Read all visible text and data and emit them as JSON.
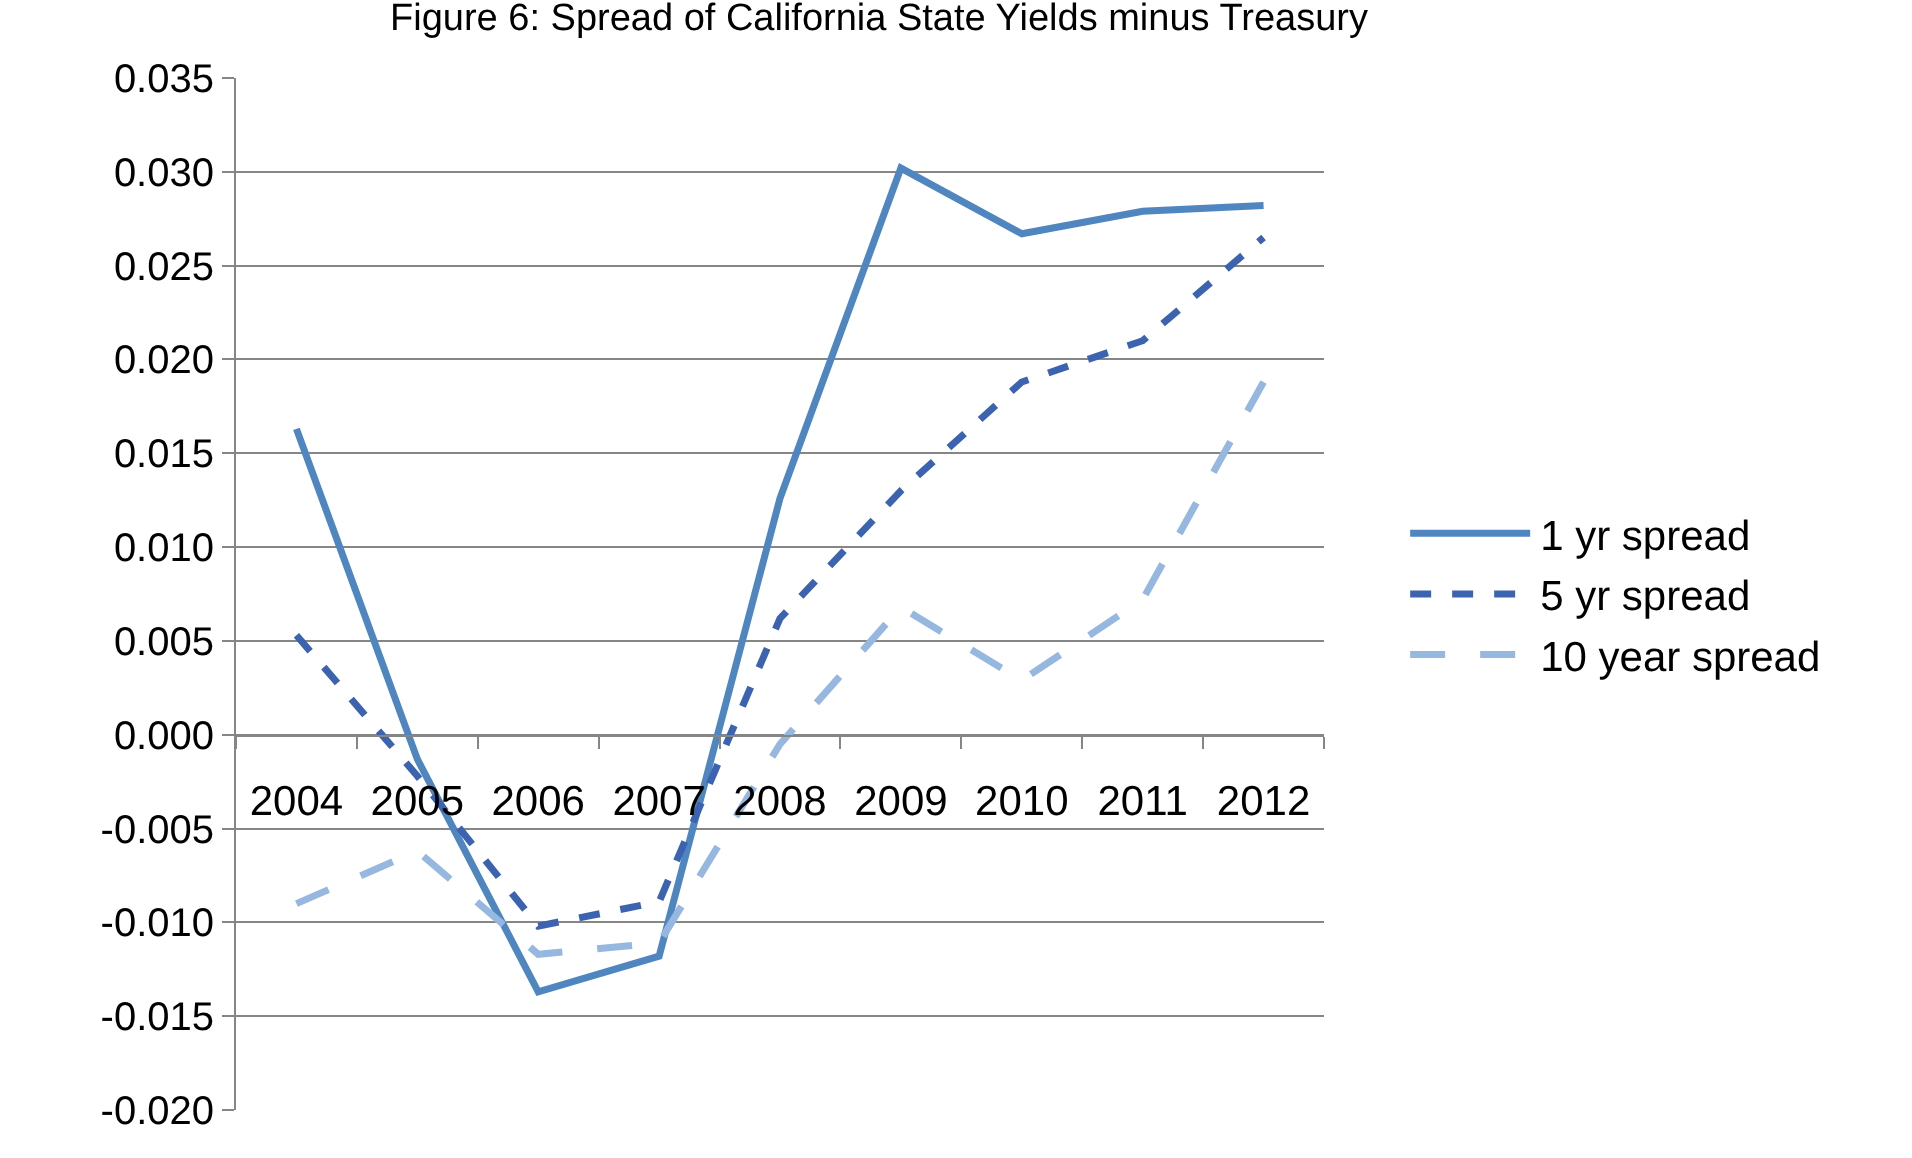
{
  "chart_data": {
    "type": "line",
    "title": "Figure 6: Spread of California State Yields minus Treasury",
    "categories": [
      "2004",
      "2005",
      "2006",
      "2007",
      "2008",
      "2009",
      "2010",
      "2011",
      "2012"
    ],
    "series": [
      {
        "name": "1 yr spread",
        "color": "#4f86c0",
        "line_style": "solid",
        "values": [
          0.0163,
          -0.0013,
          -0.0137,
          -0.0118,
          0.0126,
          0.0302,
          0.0267,
          0.0279,
          0.0282
        ]
      },
      {
        "name": "5 yr spread",
        "color": "#3c63b0",
        "line_style": "dashed",
        "values": [
          0.0053,
          -0.0022,
          -0.0102,
          -0.0089,
          0.0062,
          0.013,
          0.0188,
          0.021,
          0.0265
        ]
      },
      {
        "name": "10 year spread",
        "color": "#95b7e0",
        "line_style": "dashed",
        "values": [
          -0.009,
          -0.0062,
          -0.0117,
          -0.0111,
          -0.0005,
          0.0068,
          0.0029,
          0.0072,
          0.0188
        ]
      }
    ],
    "ylim": [
      -0.02,
      0.035
    ],
    "yticks": [
      {
        "value": -0.02,
        "label": "-0.020"
      },
      {
        "value": -0.015,
        "label": "-0.015"
      },
      {
        "value": -0.01,
        "label": "-0.010"
      },
      {
        "value": -0.005,
        "label": "-0.005"
      },
      {
        "value": 0,
        "label": "0.000"
      },
      {
        "value": 0.005,
        "label": "0.005"
      },
      {
        "value": 0.01,
        "label": "0.010"
      },
      {
        "value": 0.015,
        "label": "0.015"
      },
      {
        "value": 0.02,
        "label": "0.020"
      },
      {
        "value": 0.025,
        "label": "0.025"
      },
      {
        "value": 0.03,
        "label": "0.030"
      },
      {
        "value": 0.035,
        "label": "0.035"
      }
    ],
    "grid": "y",
    "legend": "right",
    "marker": "none"
  }
}
